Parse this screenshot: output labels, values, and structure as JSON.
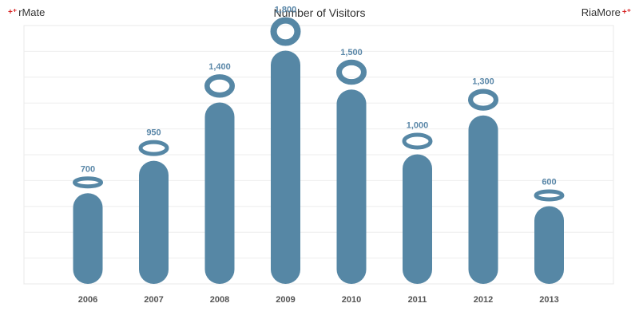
{
  "header": {
    "brand_left": "rMate",
    "brand_right": "RiaMore",
    "title": "Number of Visitors"
  },
  "chart_data": {
    "type": "bar",
    "title": "Number of Visitors",
    "xlabel": "",
    "ylabel": "",
    "categories": [
      "2006",
      "2007",
      "2008",
      "2009",
      "2010",
      "2011",
      "2012",
      "2013"
    ],
    "values": [
      700,
      950,
      1400,
      1800,
      1500,
      1000,
      1300,
      600
    ],
    "value_labels": [
      "700",
      "950",
      "1,400",
      "1,800",
      "1,500",
      "1,000",
      "1,300",
      "600"
    ],
    "ylim": [
      0,
      2000
    ],
    "grid": true,
    "color": "#5687a5"
  }
}
